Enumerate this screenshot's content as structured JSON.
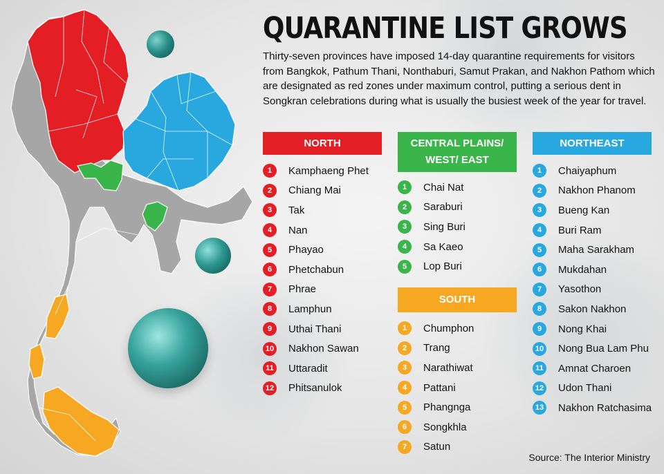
{
  "headline": "QUARANTINE LIST GROWS",
  "standfirst": "Thirty-seven provinces have imposed 14-day quarantine requirements for visitors from Bangkok, Pathum Thani, Nonthaburi, Samut Prakan, and Nakhon Pathom which are designated as red zones under maximum control, putting a serious dent in Songkran celebrations during what is usually the busiest week of the year for travel.",
  "colors": {
    "north": "#e31e24",
    "central": "#3ab54a",
    "south": "#f7a823",
    "northeast": "#29a8e0",
    "other": "#a6a6a6"
  },
  "regions": {
    "north": {
      "title": "NORTH",
      "provinces": [
        "Kamphaeng Phet",
        "Chiang Mai",
        "Tak",
        "Nan",
        "Phayao",
        "Phetchabun",
        "Phrae",
        "Lamphun",
        "Uthai Thani",
        "Nakhon Sawan",
        "Uttaradit",
        "Phitsanulok"
      ]
    },
    "central": {
      "title": "CENTRAL PLAINS/ WEST/ EAST",
      "provinces": [
        "Chai Nat",
        "Saraburi",
        "Sing Buri",
        "Sa Kaeo",
        "Lop Buri"
      ]
    },
    "south": {
      "title": "SOUTH",
      "provinces": [
        "Chumphon",
        "Trang",
        "Narathiwat",
        "Pattani",
        "Phangnga",
        "Songkhla",
        "Satun"
      ]
    },
    "northeast": {
      "title": "NORTHEAST",
      "provinces": [
        "Chaiyaphum",
        "Nakhon Phanom",
        "Bueng Kan",
        "Buri Ram",
        "Maha Sarakham",
        "Mukdahan",
        "Yasothon",
        "Sakon Nakhon",
        "Nong Khai",
        "Nong Bua Lam Phu",
        "Amnat Charoen",
        "Udon Thani",
        "Nakhon Ratchasima"
      ]
    }
  },
  "source": "Source: The Interior Ministry"
}
